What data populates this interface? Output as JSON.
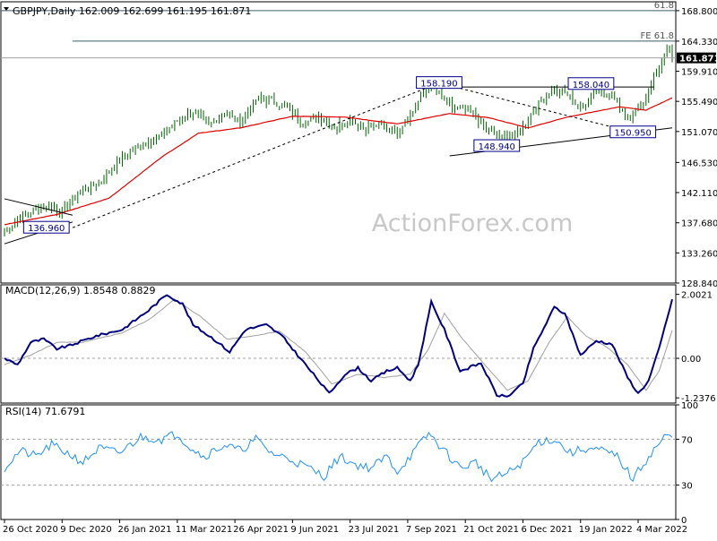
{
  "watermark": "ActionForex.com",
  "colors": {
    "background": "#ffffff",
    "frame": "#000000",
    "candle": "#006400",
    "ma": "#e00000",
    "trend": "#000000",
    "dashed_trend": "#000000",
    "label_box": "#00008b",
    "macd": "#000080",
    "macd_signal": "#a0a0a0",
    "rsi": "#1e90ff",
    "price_marker_bg": "#000000",
    "price_marker_text": "#ffffff",
    "watermark": "#c8c8c8"
  },
  "chart_data": [
    {
      "type": "candlestick",
      "title": "GBPJPY,Daily",
      "ohlc_header": [
        "162.009",
        "162.699",
        "161.195",
        "161.871"
      ],
      "last_price": "161.871",
      "y_ticks": [
        "168.800",
        "164.330",
        "159.910",
        "155.490",
        "151.070",
        "146.530",
        "142.110",
        "137.680",
        "133.260",
        "128.840"
      ],
      "ylim": [
        128.84,
        170.1
      ],
      "x_labels": [
        "26 Oct 2020",
        "9 Dec 2020",
        "26 Jan 2021",
        "11 Mar 2021",
        "26 Apr 2021",
        "9 Jun 2021",
        "23 Jul 2021",
        "7 Sep 2021",
        "21 Oct 2021",
        "6 Dec 2021",
        "19 Jan 2022",
        "4 Mar 2022"
      ],
      "anchors": [
        [
          0,
          136.4
        ],
        [
          6,
          138.5
        ],
        [
          12,
          139.8
        ],
        [
          18,
          140.0
        ],
        [
          22,
          139.3
        ],
        [
          28,
          142.0
        ],
        [
          36,
          143.5
        ],
        [
          46,
          147.5
        ],
        [
          54,
          149.5
        ],
        [
          60,
          150.6
        ],
        [
          66,
          152.6
        ],
        [
          72,
          154.0
        ],
        [
          78,
          152.0
        ],
        [
          84,
          153.8
        ],
        [
          90,
          152.2
        ],
        [
          96,
          155.8
        ],
        [
          102,
          155.6
        ],
        [
          108,
          154.6
        ],
        [
          114,
          152.3
        ],
        [
          120,
          153.3
        ],
        [
          126,
          151.7
        ],
        [
          132,
          152.8
        ],
        [
          138,
          151.5
        ],
        [
          144,
          152.1
        ],
        [
          150,
          151.1
        ],
        [
          156,
          154.1
        ],
        [
          162,
          157.8
        ],
        [
          166,
          156.4
        ],
        [
          172,
          154.3
        ],
        [
          178,
          153.9
        ],
        [
          184,
          151.4
        ],
        [
          190,
          150.2
        ],
        [
          196,
          150.8
        ],
        [
          202,
          154.0
        ],
        [
          208,
          157.0
        ],
        [
          214,
          156.8
        ],
        [
          220,
          154.4
        ],
        [
          226,
          157.3
        ],
        [
          232,
          156.2
        ],
        [
          238,
          153.2
        ],
        [
          244,
          155.2
        ],
        [
          248,
          159.1
        ],
        [
          252,
          162.0
        ],
        [
          254,
          163.5
        ],
        [
          255,
          161.87
        ]
      ],
      "ma_anchors": [
        [
          0,
          137.4
        ],
        [
          20,
          138.9
        ],
        [
          40,
          141.3
        ],
        [
          60,
          147.3
        ],
        [
          74,
          150.8
        ],
        [
          90,
          151.6
        ],
        [
          110,
          153.3
        ],
        [
          130,
          153.2
        ],
        [
          150,
          152.2
        ],
        [
          170,
          153.7
        ],
        [
          185,
          153.1
        ],
        [
          200,
          151.6
        ],
        [
          215,
          153.2
        ],
        [
          235,
          154.7
        ],
        [
          245,
          154.2
        ],
        [
          255,
          156.0
        ]
      ],
      "lines": [
        {
          "kind": "hline",
          "label": "61.8",
          "y": 168.8
        },
        {
          "kind": "hline",
          "label": "FE 61.8",
          "y": 164.33
        },
        {
          "kind": "hline",
          "label": "",
          "y": 161.87
        },
        {
          "kind": "hline_segment",
          "x": [
            163,
            248
          ],
          "y": 157.6
        },
        {
          "kind": "trend",
          "x": [
            0,
            26
          ],
          "y": [
            141.2,
            138.8
          ]
        },
        {
          "kind": "trend",
          "x": [
            0,
            26
          ],
          "y": [
            134.6,
            137.8
          ]
        },
        {
          "kind": "trend",
          "x": [
            170,
            255
          ],
          "y": [
            147.5,
            151.6
          ]
        },
        {
          "kind": "dashed",
          "x": [
            26,
            166
          ],
          "y": [
            136.96,
            158.19
          ]
        },
        {
          "kind": "dashed",
          "x": [
            166,
            240
          ],
          "y": [
            158.19,
            150.95
          ]
        }
      ],
      "annotations": [
        {
          "text": "158.190",
          "x": 166,
          "y": 158.19
        },
        {
          "text": "158.040",
          "x": 224,
          "y": 158.04
        },
        {
          "text": "148.940",
          "x": 188,
          "y": 148.94
        },
        {
          "text": "150.950",
          "x": 240,
          "y": 150.95
        },
        {
          "text": "136.960",
          "x": 16,
          "y": 136.96
        }
      ]
    },
    {
      "type": "line",
      "title": "MACD(12,26,9) 1.8548 0.8829",
      "y_ticks": [
        "2.0021",
        "0.00",
        "-1.2376"
      ],
      "ylim": [
        -1.4,
        2.3
      ],
      "macd_anchors": [
        [
          0,
          0
        ],
        [
          5,
          -0.2
        ],
        [
          10,
          0.5
        ],
        [
          15,
          0.6
        ],
        [
          20,
          0.3
        ],
        [
          25,
          0.4
        ],
        [
          35,
          0.7
        ],
        [
          45,
          0.9
        ],
        [
          55,
          1.5
        ],
        [
          62,
          2.0
        ],
        [
          68,
          1.7
        ],
        [
          72,
          1.05
        ],
        [
          80,
          0.6
        ],
        [
          86,
          0.2
        ],
        [
          92,
          0.9
        ],
        [
          100,
          1.05
        ],
        [
          106,
          0.7
        ],
        [
          112,
          0.1
        ],
        [
          118,
          -0.5
        ],
        [
          124,
          -1.1
        ],
        [
          130,
          -0.5
        ],
        [
          135,
          -0.3
        ],
        [
          140,
          -0.7
        ],
        [
          146,
          -0.4
        ],
        [
          150,
          -0.3
        ],
        [
          155,
          -0.7
        ],
        [
          158,
          -0.2
        ],
        [
          163,
          1.75
        ],
        [
          168,
          0.9
        ],
        [
          174,
          -0.4
        ],
        [
          182,
          -0.15
        ],
        [
          188,
          -1.15
        ],
        [
          192,
          -1.2
        ],
        [
          198,
          -0.8
        ],
        [
          202,
          0.3
        ],
        [
          210,
          1.6
        ],
        [
          214,
          1.4
        ],
        [
          220,
          0.1
        ],
        [
          226,
          0.55
        ],
        [
          232,
          0.45
        ],
        [
          238,
          -0.6
        ],
        [
          242,
          -1.1
        ],
        [
          246,
          -0.7
        ],
        [
          250,
          0.3
        ],
        [
          255,
          1.85
        ]
      ],
      "signal_anchors": [
        [
          0,
          -0.2
        ],
        [
          10,
          0.1
        ],
        [
          20,
          0.5
        ],
        [
          30,
          0.5
        ],
        [
          45,
          0.8
        ],
        [
          55,
          1.2
        ],
        [
          65,
          1.85
        ],
        [
          75,
          1.3
        ],
        [
          85,
          0.6
        ],
        [
          95,
          0.7
        ],
        [
          105,
          0.85
        ],
        [
          115,
          0.2
        ],
        [
          125,
          -0.8
        ],
        [
          135,
          -0.5
        ],
        [
          145,
          -0.6
        ],
        [
          155,
          -0.5
        ],
        [
          162,
          0.3
        ],
        [
          168,
          1.4
        ],
        [
          175,
          0.6
        ],
        [
          185,
          -0.35
        ],
        [
          192,
          -1.0
        ],
        [
          200,
          -0.7
        ],
        [
          208,
          0.5
        ],
        [
          215,
          1.3
        ],
        [
          222,
          0.7
        ],
        [
          230,
          0.35
        ],
        [
          238,
          -0.2
        ],
        [
          245,
          -1.0
        ],
        [
          250,
          -0.4
        ],
        [
          255,
          0.88
        ]
      ]
    },
    {
      "type": "line",
      "title": "RSI(14) 71.6791",
      "y_ticks": [
        "100",
        "70",
        "30",
        "0"
      ],
      "ylim": [
        0,
        100
      ],
      "rsi_anchors": [
        [
          0,
          45
        ],
        [
          6,
          60
        ],
        [
          12,
          55
        ],
        [
          18,
          65
        ],
        [
          24,
          58
        ],
        [
          30,
          50
        ],
        [
          36,
          62
        ],
        [
          44,
          58
        ],
        [
          52,
          72
        ],
        [
          60,
          70
        ],
        [
          66,
          75
        ],
        [
          70,
          65
        ],
        [
          76,
          55
        ],
        [
          84,
          65
        ],
        [
          90,
          60
        ],
        [
          96,
          70
        ],
        [
          102,
          58
        ],
        [
          110,
          52
        ],
        [
          116,
          45
        ],
        [
          122,
          38
        ],
        [
          128,
          55
        ],
        [
          134,
          48
        ],
        [
          140,
          45
        ],
        [
          146,
          55
        ],
        [
          150,
          42
        ],
        [
          156,
          58
        ],
        [
          162,
          75
        ],
        [
          168,
          60
        ],
        [
          174,
          45
        ],
        [
          180,
          50
        ],
        [
          186,
          35
        ],
        [
          192,
          40
        ],
        [
          198,
          50
        ],
        [
          204,
          68
        ],
        [
          210,
          70
        ],
        [
          216,
          58
        ],
        [
          222,
          62
        ],
        [
          228,
          60
        ],
        [
          234,
          55
        ],
        [
          240,
          35
        ],
        [
          246,
          55
        ],
        [
          252,
          72
        ],
        [
          255,
          71.68
        ]
      ]
    }
  ]
}
